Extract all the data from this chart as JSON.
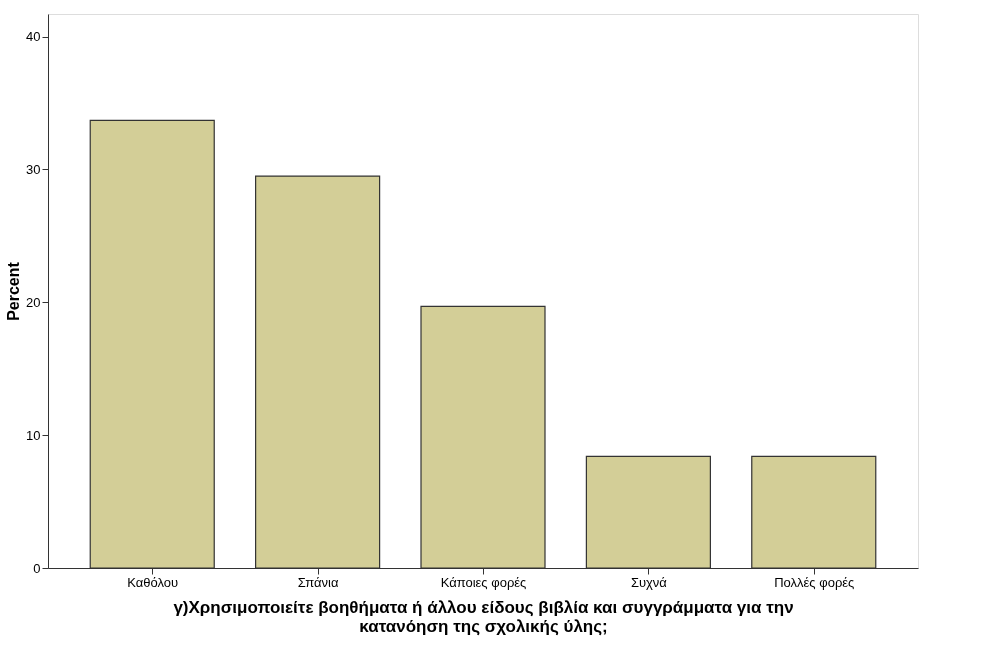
{
  "chart_data": {
    "type": "bar",
    "categories": [
      "Καθόλου",
      "Σπάνια",
      "Κάποιες φορές",
      "Συχνά",
      "Πολλές φορές"
    ],
    "values": [
      33.7,
      29.5,
      19.7,
      8.4,
      8.4
    ],
    "color": "#d3ce97",
    "xlabel": "γ)Χρησιμοποιείτε βοηθήματα ή άλλου είδους βιβλία και συγγράμματα για την\nκατανόηση της σχολικής ύλης;",
    "ylabel": "Percent",
    "ylim": [
      0,
      41.7
    ],
    "yticks": [
      0,
      10,
      20,
      30,
      40
    ],
    "grid": false
  }
}
